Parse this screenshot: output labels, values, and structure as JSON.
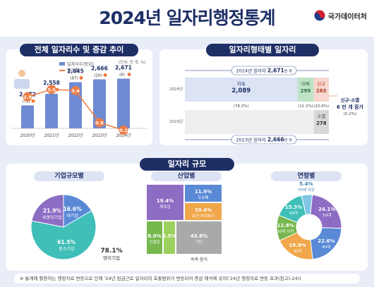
{
  "title": "2024년 일자리행정통계",
  "logo": "국가데이터처",
  "panel1": {
    "title": "전체 일자리수 및 증감 추이",
    "unit": "(단위: 만 개, %)",
    "legend": [
      "일자리수(증감)",
      "증감률"
    ]
  },
  "panel2": {
    "title": "일자리형태별 일자리",
    "y2024_total": "2024년 일자리",
    "y2024_total_value": "2,671",
    "y2023_total": "2023년 일자리",
    "y2023_total_value": "2,666",
    "unit_suffix": "만 개",
    "row2024": "2024년",
    "row2023": "2023년",
    "sustained_label": "지속",
    "sustained_value": "2,089",
    "sustained_pct": "(78.2%)",
    "replaced_label": "대체",
    "replaced_value": "299",
    "replaced_pct": "(11.2%)",
    "new_label": "신규",
    "new_value": "283",
    "new_pct": "(10.6%)",
    "extinct_label": "소멸",
    "extinct_value": "278",
    "net_label": "신규-소멸",
    "net_value": "6",
    "net_suffix": "만 개 증가",
    "net_pct": "(0.2%)"
  },
  "panel3": {
    "title": "일자리 규모",
    "sub1": "기업규모별",
    "sub2": "산업별",
    "sub3": "연령별",
    "nonprofit": "비영리기업",
    "profit": "영리기업",
    "profit_pct": "78.1",
    "footer_icon_label": "숙박·음식"
  },
  "footnote": "※ 통계에 활용하는 행정자료 변동으로 인해 '24년 임금근로 일자리의 포괄범위가 변동되어 증감 해석에 유의('24년 행정자료 변동 효과(참고)-24))",
  "colors": {
    "navy": "#1e2f66",
    "bar": "#6f8bd3",
    "line": "#ee7d43",
    "teal": "#3fbfb8",
    "purple": "#8d6cc4",
    "blue": "#5a8ad6",
    "orange": "#f0a64a",
    "gray": "#a9a9a9",
    "green": "#76b74e",
    "lightgreen": "#9bd05e"
  },
  "chart_data": [
    {
      "type": "bar",
      "categories": [
        "2020년",
        "2021년",
        "2022년",
        "2023년",
        "2024년"
      ],
      "series": [
        {
          "name": "일자리수(증감)",
          "values": [
            2472,
            2558,
            2645,
            2666,
            2671
          ],
          "change_labels": [
            "71",
            "85",
            "87",
            "20",
            "6"
          ]
        },
        {
          "name": "증감률",
          "values": [
            2.9,
            3.5,
            3.4,
            0.8,
            0.2
          ]
        }
      ]
    },
    {
      "type": "bar",
      "categories": [
        "2024년",
        "2023년"
      ],
      "series": [
        {
          "name": "지속",
          "values": [
            2089,
            0
          ]
        },
        {
          "name": "대체",
          "values": [
            299,
            0
          ]
        },
        {
          "name": "신규",
          "values": [
            283,
            0
          ]
        },
        {
          "name": "소멸",
          "values": [
            0,
            278
          ]
        }
      ],
      "net_change": 6
    },
    {
      "type": "pie",
      "title": "기업규모별",
      "labels": [
        "대기업",
        "중소기업",
        "비영리기업"
      ],
      "values": [
        16.6,
        61.5,
        21.9
      ]
    },
    {
      "type": "table",
      "title": "산업별",
      "labels": [
        "제조업",
        "도소매",
        "보건·사회복지",
        "건설업",
        "기타",
        ""
      ],
      "values": [
        19.4,
        11.9,
        10.4,
        8.0,
        43.8,
        6.5
      ]
    },
    {
      "type": "pie",
      "title": "연령별",
      "labels": [
        "50대",
        "40대",
        "30대",
        "20대 이하",
        "60대",
        "70세 이상"
      ],
      "values": [
        24.1,
        22.6,
        19.9,
        12.8,
        15.3,
        5.4
      ]
    }
  ]
}
